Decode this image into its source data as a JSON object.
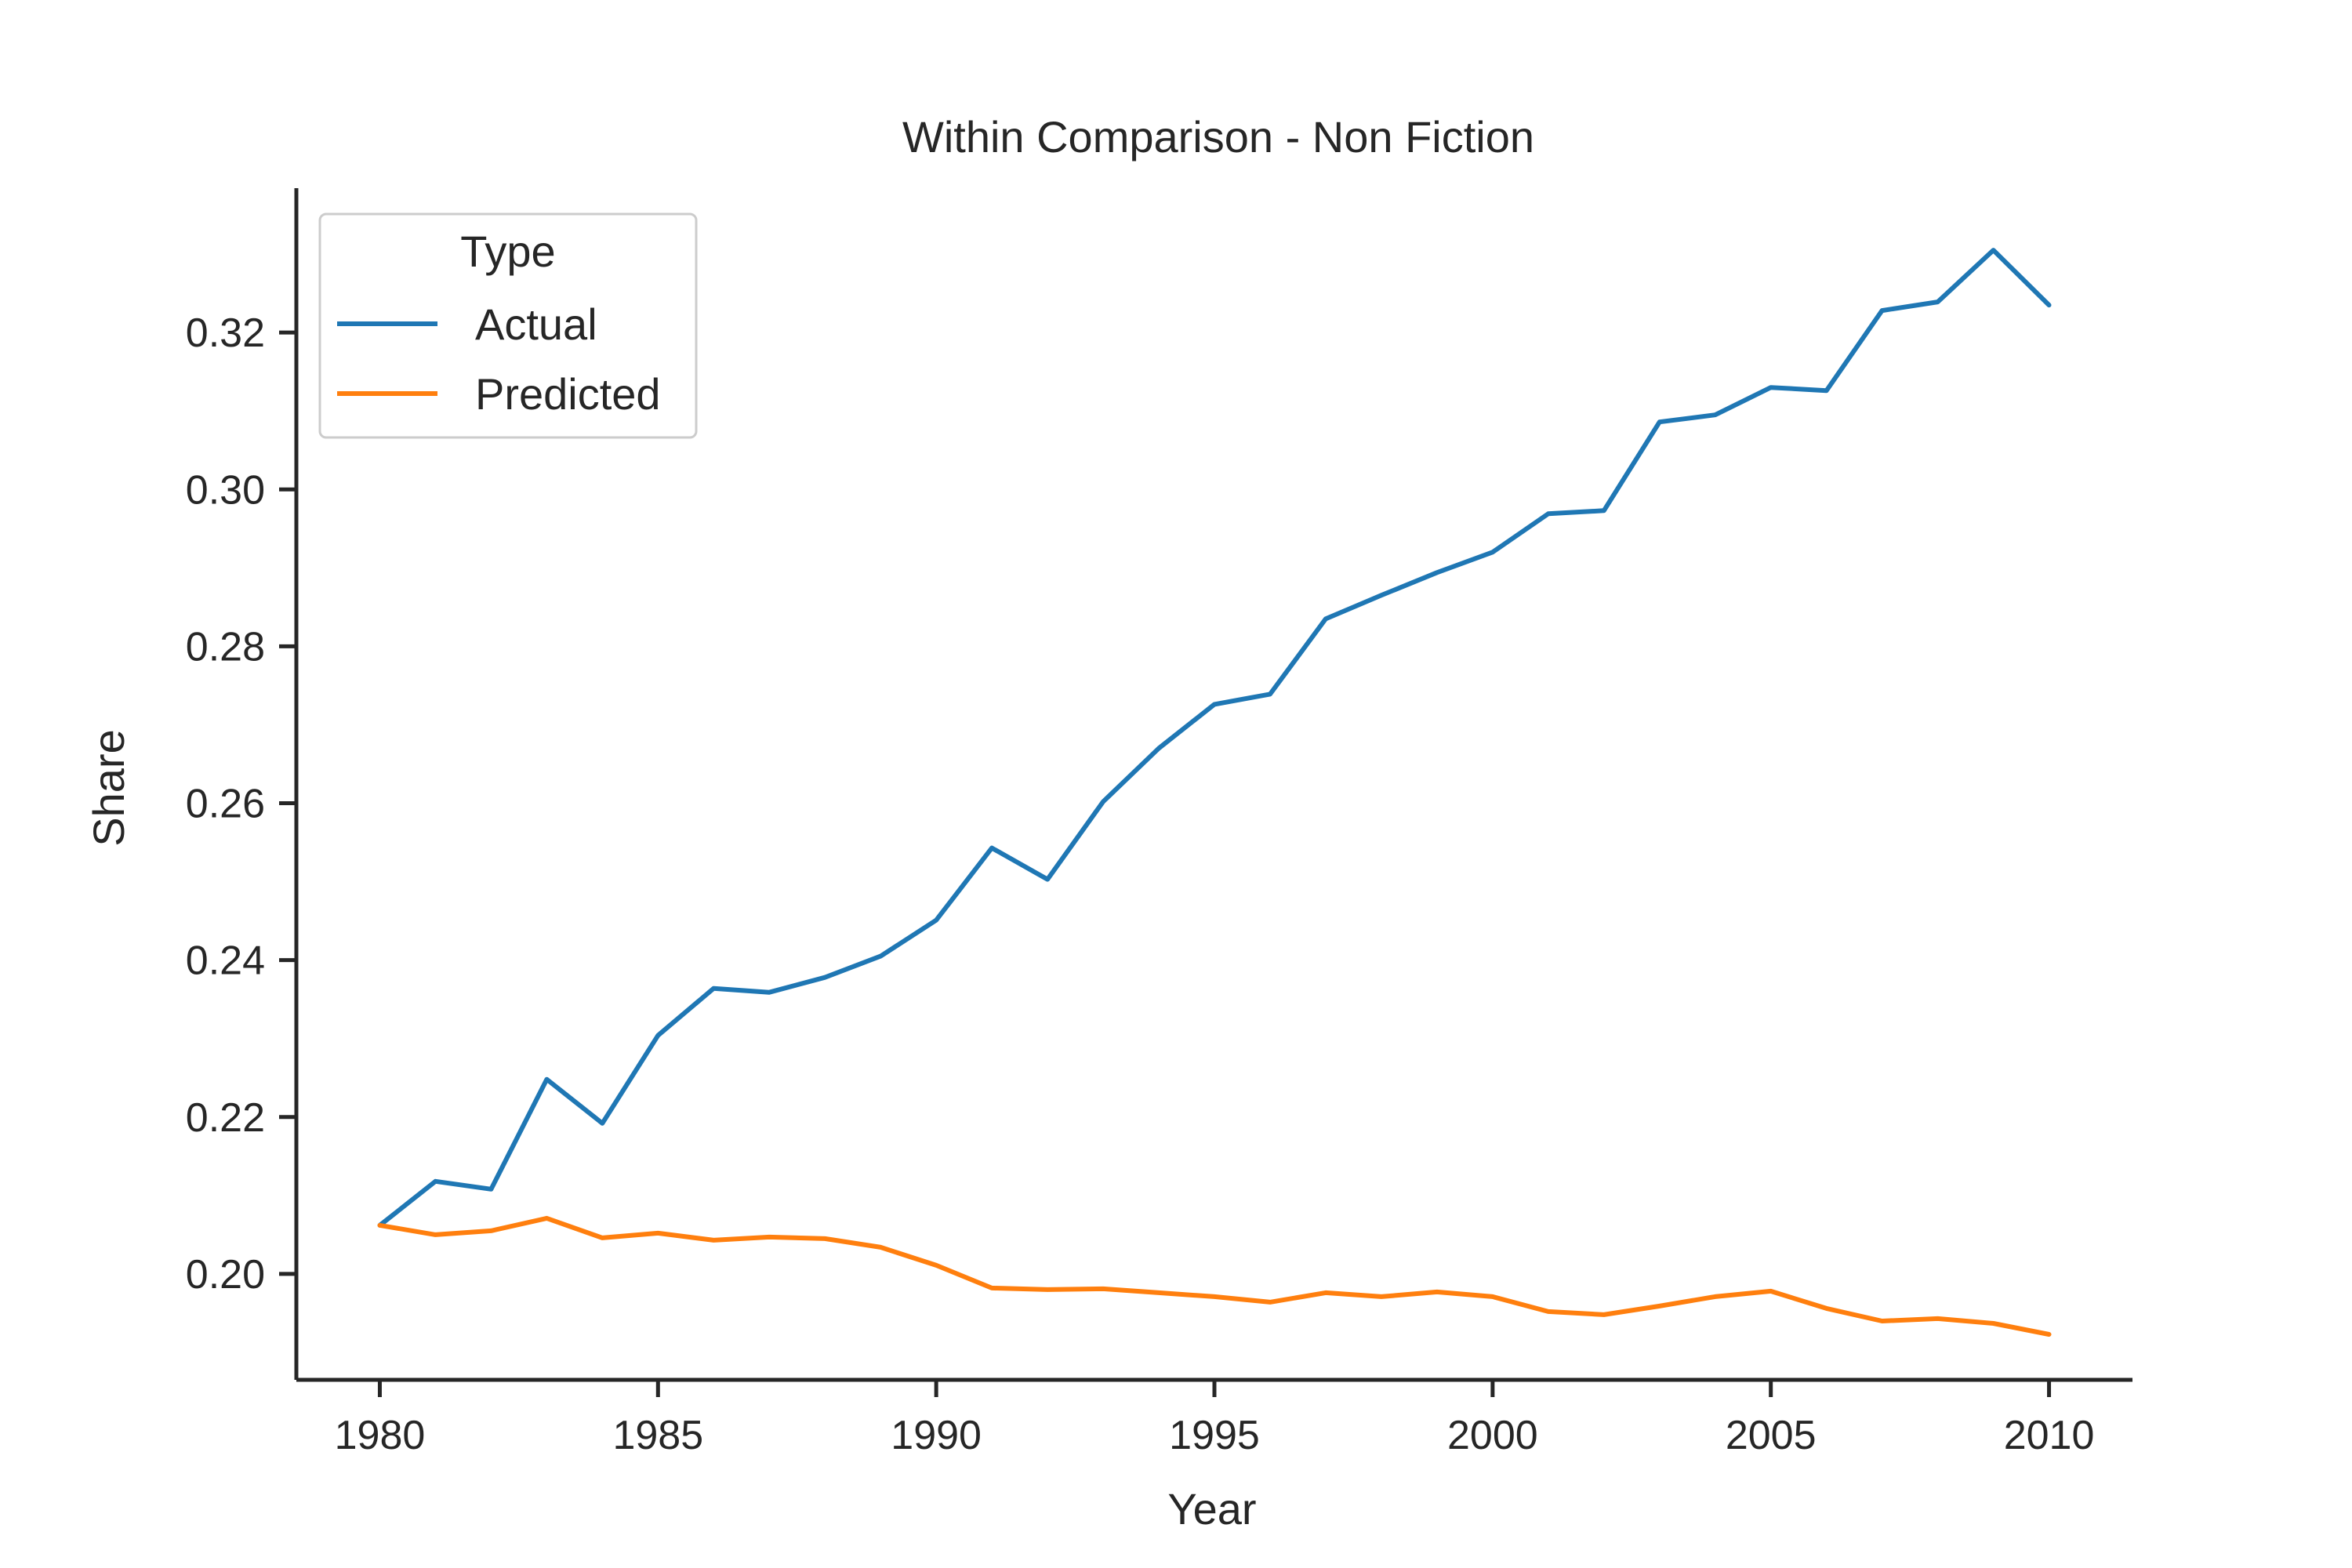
{
  "chart_data": {
    "type": "line",
    "title": "Within Comparison - Non Fiction",
    "xlabel": "Year",
    "ylabel": "Share",
    "xlim": [
      1978.5,
      2011.5
    ],
    "ylim": [
      0.1865,
      0.3384
    ],
    "xticks": [
      "1980",
      "1985",
      "1990",
      "1995",
      "2000",
      "2005",
      "2010"
    ],
    "yticks": [
      "0.20",
      "0.22",
      "0.24",
      "0.26",
      "0.28",
      "0.30",
      "0.32"
    ],
    "grid": false,
    "legend": {
      "title": "Type",
      "placement": "top-left"
    },
    "x": [
      1980,
      1981,
      1982,
      1983,
      1984,
      1985,
      1986,
      1987,
      1988,
      1989,
      1990,
      1991,
      1992,
      1993,
      1994,
      1995,
      1996,
      1997,
      1998,
      1999,
      2000,
      2001,
      2002,
      2003,
      2004,
      2005,
      2006,
      2007,
      2008,
      2009,
      2010
    ],
    "series": [
      {
        "name": "Actual",
        "color": "#1f77b4",
        "values": [
          0.2062,
          0.2118,
          0.2108,
          0.2248,
          0.2192,
          0.2304,
          0.2364,
          0.2359,
          0.2378,
          0.2405,
          0.2451,
          0.2543,
          0.2503,
          0.2602,
          0.267,
          0.2726,
          0.2739,
          0.2835,
          0.2865,
          0.2894,
          0.292,
          0.2969,
          0.2973,
          0.3086,
          0.3095,
          0.313,
          0.3126,
          0.3228,
          0.3239,
          0.3305,
          0.3235
        ]
      },
      {
        "name": "Predicted",
        "color": "#ff7f0e",
        "values": [
          0.2062,
          0.205,
          0.2055,
          0.2071,
          0.2046,
          0.2052,
          0.2043,
          0.2047,
          0.2045,
          0.2034,
          0.2011,
          0.1982,
          0.198,
          0.1981,
          0.1976,
          0.1971,
          0.1964,
          0.1976,
          0.1971,
          0.1977,
          0.1971,
          0.1952,
          0.1948,
          0.1959,
          0.1971,
          0.1978,
          0.1956,
          0.194,
          0.1943,
          0.1937,
          0.1923
        ]
      }
    ]
  }
}
